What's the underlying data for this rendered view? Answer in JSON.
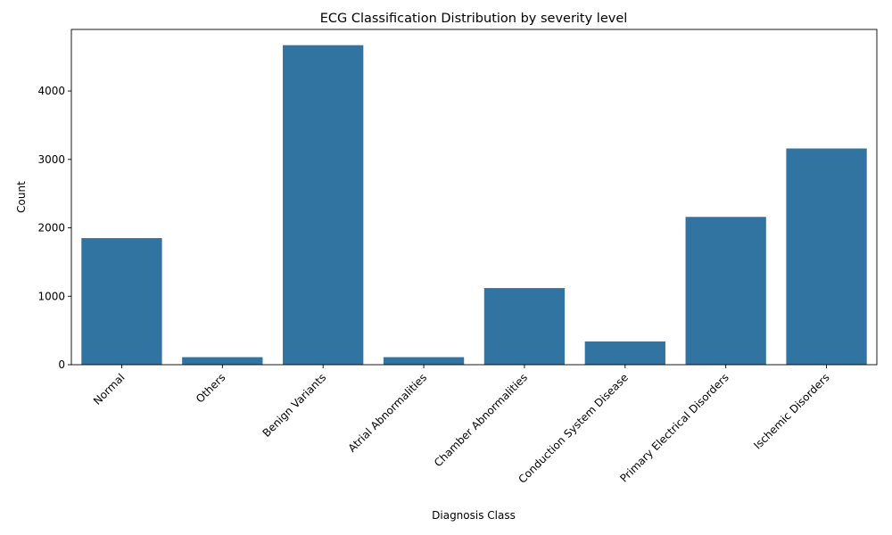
{
  "chart_data": {
    "type": "bar",
    "title": "ECG Classification Distribution by severity level",
    "xlabel": "Diagnosis Class",
    "ylabel": "Count",
    "categories": [
      "Normal",
      "Others",
      "Benign Variants",
      "Atrial Abnormalities",
      "Chamber Abnormalities",
      "Conduction System Disease",
      "Primary Electrical Disorders",
      "Ischemic Disorders"
    ],
    "values": [
      1850,
      110,
      4670,
      110,
      1120,
      340,
      2160,
      3160
    ],
    "ylim": [
      0,
      4900
    ],
    "yticks": [
      0,
      1000,
      2000,
      3000,
      4000
    ],
    "grid": false,
    "legend": "none",
    "bar_color": "#3274a1"
  }
}
